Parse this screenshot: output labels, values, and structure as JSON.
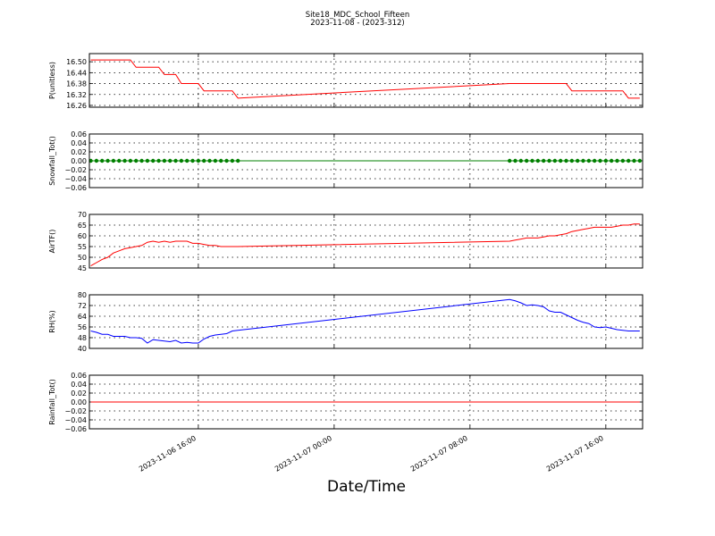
{
  "title": "Site18_MDC_School_Fifteen",
  "subtitle": "2023-11-08 - (2023-312)",
  "xlabel": "Date/Time",
  "chart_data": [
    {
      "type": "line",
      "ylabel": "P(unitless)",
      "color": "#ff0000",
      "xlim": [
        "2023-11-06 09:35",
        "2023-11-07 18:10"
      ],
      "xticks": [
        "2023-11-06 16:00",
        "2023-11-07 00:00",
        "2023-11-07 08:00",
        "2023-11-07 16:00"
      ],
      "ylim": [
        16.25,
        16.545
      ],
      "yticks": [
        16.26,
        16.32,
        16.38,
        16.44,
        {
          "value": 16.5,
          "label": "16.50"
        }
      ],
      "grid": true,
      "x": [
        "2023-11-06 09:40",
        "2023-11-06 10:00",
        "2023-11-06 10:20",
        "2023-11-06 10:40",
        "2023-11-06 11:00",
        "2023-11-06 11:20",
        "2023-11-06 11:40",
        "2023-11-06 12:00",
        "2023-11-06 12:20",
        "2023-11-06 12:40",
        "2023-11-06 13:00",
        "2023-11-06 13:20",
        "2023-11-06 13:40",
        "2023-11-06 14:00",
        "2023-11-06 14:20",
        "2023-11-06 14:40",
        "2023-11-06 15:00",
        "2023-11-06 15:20",
        "2023-11-06 15:40",
        "2023-11-06 16:00",
        "2023-11-06 16:20",
        "2023-11-06 16:40",
        "2023-11-06 17:00",
        "2023-11-06 17:20",
        "2023-11-06 17:40",
        "2023-11-06 18:00",
        "2023-11-06 18:20",
        "2023-11-07 10:20",
        "2023-11-07 10:40",
        "2023-11-07 11:00",
        "2023-11-07 11:20",
        "2023-11-07 11:40",
        "2023-11-07 12:00",
        "2023-11-07 12:20",
        "2023-11-07 12:40",
        "2023-11-07 13:00",
        "2023-11-07 13:20",
        "2023-11-07 13:40",
        "2023-11-07 14:00",
        "2023-11-07 14:20",
        "2023-11-07 14:40",
        "2023-11-07 15:00",
        "2023-11-07 15:20",
        "2023-11-07 15:40",
        "2023-11-07 16:00",
        "2023-11-07 16:20",
        "2023-11-07 16:40",
        "2023-11-07 17:00",
        "2023-11-07 17:20",
        "2023-11-07 17:40",
        "2023-11-07 18:00"
      ],
      "values": [
        16.51,
        16.51,
        16.51,
        16.51,
        16.51,
        16.51,
        16.51,
        16.51,
        16.47,
        16.47,
        16.47,
        16.47,
        16.47,
        16.43,
        16.43,
        16.43,
        16.38,
        16.38,
        16.38,
        16.38,
        16.34,
        16.34,
        16.34,
        16.34,
        16.34,
        16.34,
        16.3,
        16.38,
        16.38,
        16.38,
        16.38,
        16.38,
        16.38,
        16.38,
        16.38,
        16.38,
        16.38,
        16.38,
        16.34,
        16.34,
        16.34,
        16.34,
        16.34,
        16.34,
        16.34,
        16.34,
        16.34,
        16.34,
        16.3,
        16.3,
        16.3
      ]
    },
    {
      "type": "line",
      "ylabel": "Snowfall_Tot()",
      "color": "#008000",
      "marker": "o",
      "xlim": [
        "2023-11-06 09:35",
        "2023-11-07 18:10"
      ],
      "xticks": [
        "2023-11-06 16:00",
        "2023-11-07 00:00",
        "2023-11-07 08:00",
        "2023-11-07 16:00"
      ],
      "ylim": [
        -0.06,
        0.06
      ],
      "yticks": [
        {
          "value": -0.06,
          "label": "−0.06"
        },
        {
          "value": -0.04,
          "label": "−0.04"
        },
        {
          "value": -0.02,
          "label": "−0.02"
        },
        {
          "value": 0,
          "label": "0.00"
        },
        0.02,
        0.04,
        0.06
      ],
      "grid": true,
      "x": [
        "2023-11-06 09:40",
        "2023-11-06 10:00",
        "2023-11-06 10:20",
        "2023-11-06 10:40",
        "2023-11-06 11:00",
        "2023-11-06 11:20",
        "2023-11-06 11:40",
        "2023-11-06 12:00",
        "2023-11-06 12:20",
        "2023-11-06 12:40",
        "2023-11-06 13:00",
        "2023-11-06 13:20",
        "2023-11-06 13:40",
        "2023-11-06 14:00",
        "2023-11-06 14:20",
        "2023-11-06 14:40",
        "2023-11-06 15:00",
        "2023-11-06 15:20",
        "2023-11-06 15:40",
        "2023-11-06 16:00",
        "2023-11-06 16:20",
        "2023-11-06 16:40",
        "2023-11-06 17:00",
        "2023-11-06 17:20",
        "2023-11-06 17:40",
        "2023-11-06 18:00",
        "2023-11-06 18:20",
        "2023-11-07 10:20",
        "2023-11-07 10:40",
        "2023-11-07 11:00",
        "2023-11-07 11:20",
        "2023-11-07 11:40",
        "2023-11-07 12:00",
        "2023-11-07 12:20",
        "2023-11-07 12:40",
        "2023-11-07 13:00",
        "2023-11-07 13:20",
        "2023-11-07 13:40",
        "2023-11-07 14:00",
        "2023-11-07 14:20",
        "2023-11-07 14:40",
        "2023-11-07 15:00",
        "2023-11-07 15:20",
        "2023-11-07 15:40",
        "2023-11-07 16:00",
        "2023-11-07 16:20",
        "2023-11-07 16:40",
        "2023-11-07 17:00",
        "2023-11-07 17:20",
        "2023-11-07 17:40",
        "2023-11-07 18:00"
      ],
      "values": [
        0,
        0,
        0,
        0,
        0,
        0,
        0,
        0,
        0,
        0,
        0,
        0,
        0,
        0,
        0,
        0,
        0,
        0,
        0,
        0,
        0,
        0,
        0,
        0,
        0,
        0,
        0,
        0,
        0,
        0,
        0,
        0,
        0,
        0,
        0,
        0,
        0,
        0,
        0,
        0,
        0,
        0,
        0,
        0,
        0,
        0,
        0,
        0,
        0,
        0,
        0
      ]
    },
    {
      "type": "line",
      "ylabel": "AirTF()",
      "color": "#ff0000",
      "xlim": [
        "2023-11-06 09:35",
        "2023-11-07 18:10"
      ],
      "xticks": [
        "2023-11-06 16:00",
        "2023-11-07 00:00",
        "2023-11-07 08:00",
        "2023-11-07 16:00"
      ],
      "ylim": [
        45,
        70
      ],
      "yticks": [
        45,
        50,
        55,
        60,
        65,
        70
      ],
      "grid": true,
      "x": [
        "2023-11-06 09:40",
        "2023-11-06 10:00",
        "2023-11-06 10:20",
        "2023-11-06 10:40",
        "2023-11-06 11:00",
        "2023-11-06 11:20",
        "2023-11-06 11:40",
        "2023-11-06 12:00",
        "2023-11-06 12:20",
        "2023-11-06 12:40",
        "2023-11-06 13:00",
        "2023-11-06 13:20",
        "2023-11-06 13:40",
        "2023-11-06 14:00",
        "2023-11-06 14:20",
        "2023-11-06 14:40",
        "2023-11-06 15:00",
        "2023-11-06 15:20",
        "2023-11-06 15:40",
        "2023-11-06 16:00",
        "2023-11-06 16:20",
        "2023-11-06 16:40",
        "2023-11-06 17:00",
        "2023-11-06 17:20",
        "2023-11-06 17:40",
        "2023-11-06 18:00",
        "2023-11-06 18:20",
        "2023-11-07 10:20",
        "2023-11-07 10:40",
        "2023-11-07 11:00",
        "2023-11-07 11:20",
        "2023-11-07 11:40",
        "2023-11-07 12:00",
        "2023-11-07 12:20",
        "2023-11-07 12:40",
        "2023-11-07 13:00",
        "2023-11-07 13:20",
        "2023-11-07 13:40",
        "2023-11-07 14:00",
        "2023-11-07 14:20",
        "2023-11-07 14:40",
        "2023-11-07 15:00",
        "2023-11-07 15:20",
        "2023-11-07 15:40",
        "2023-11-07 16:00",
        "2023-11-07 16:20",
        "2023-11-07 16:40",
        "2023-11-07 17:00",
        "2023-11-07 17:20",
        "2023-11-07 17:40",
        "2023-11-07 18:00"
      ],
      "values": [
        46,
        47.5,
        49,
        50,
        52,
        53,
        54,
        54.5,
        55,
        55.5,
        57,
        57.5,
        57,
        57.5,
        57,
        57.5,
        57.5,
        57.5,
        56.5,
        56.5,
        56,
        55.5,
        55.5,
        55,
        55,
        55,
        55,
        57.5,
        58,
        58.5,
        59,
        59,
        59,
        59.5,
        60,
        60,
        60.5,
        61,
        62,
        62.5,
        63,
        63.5,
        64,
        64,
        64,
        64,
        64.5,
        65,
        65,
        65.5,
        65.5
      ]
    },
    {
      "type": "line",
      "ylabel": "RH(%)",
      "color": "#0000ff",
      "xlim": [
        "2023-11-06 09:35",
        "2023-11-07 18:10"
      ],
      "xticks": [
        "2023-11-06 16:00",
        "2023-11-07 00:00",
        "2023-11-07 08:00",
        "2023-11-07 16:00"
      ],
      "ylim": [
        40,
        80
      ],
      "yticks": [
        40,
        48,
        56,
        64,
        72,
        80
      ],
      "grid": true,
      "x": [
        "2023-11-06 09:40",
        "2023-11-06 10:00",
        "2023-11-06 10:20",
        "2023-11-06 10:40",
        "2023-11-06 11:00",
        "2023-11-06 11:20",
        "2023-11-06 11:40",
        "2023-11-06 12:00",
        "2023-11-06 12:20",
        "2023-11-06 12:40",
        "2023-11-06 13:00",
        "2023-11-06 13:20",
        "2023-11-06 13:40",
        "2023-11-06 14:00",
        "2023-11-06 14:20",
        "2023-11-06 14:40",
        "2023-11-06 15:00",
        "2023-11-06 15:20",
        "2023-11-06 15:40",
        "2023-11-06 16:00",
        "2023-11-06 16:20",
        "2023-11-06 16:40",
        "2023-11-06 17:00",
        "2023-11-06 17:20",
        "2023-11-06 17:40",
        "2023-11-06 18:00",
        "2023-11-06 18:20",
        "2023-11-07 10:20",
        "2023-11-07 10:40",
        "2023-11-07 11:00",
        "2023-11-07 11:20",
        "2023-11-07 11:40",
        "2023-11-07 12:00",
        "2023-11-07 12:20",
        "2023-11-07 12:40",
        "2023-11-07 13:00",
        "2023-11-07 13:20",
        "2023-11-07 13:40",
        "2023-11-07 14:00",
        "2023-11-07 14:20",
        "2023-11-07 14:40",
        "2023-11-07 15:00",
        "2023-11-07 15:20",
        "2023-11-07 15:40",
        "2023-11-07 16:00",
        "2023-11-07 16:20",
        "2023-11-07 16:40",
        "2023-11-07 17:00",
        "2023-11-07 17:20",
        "2023-11-07 17:40",
        "2023-11-07 18:00"
      ],
      "values": [
        53,
        52,
        50.5,
        50.5,
        49,
        49,
        49,
        48,
        48,
        47.5,
        44,
        46.5,
        46,
        45.5,
        45,
        46,
        44,
        44.5,
        44,
        44,
        47,
        49,
        50,
        50.5,
        51,
        53,
        53.5,
        76.5,
        75.5,
        74,
        72,
        72.5,
        72,
        71,
        68,
        67,
        67,
        65,
        63,
        61,
        59.5,
        58.5,
        56,
        55.5,
        56,
        55,
        54,
        53.5,
        53,
        53,
        53
      ]
    },
    {
      "type": "line",
      "ylabel": "Rainfall_Tot()",
      "color": "#ff0000",
      "xlim": [
        "2023-11-06 09:35",
        "2023-11-07 18:10"
      ],
      "xticks": [
        "2023-11-06 16:00",
        "2023-11-07 00:00",
        "2023-11-07 08:00",
        "2023-11-07 16:00"
      ],
      "ylim": [
        -0.06,
        0.06
      ],
      "yticks": [
        {
          "value": -0.06,
          "label": "−0.06"
        },
        {
          "value": -0.04,
          "label": "−0.04"
        },
        {
          "value": -0.02,
          "label": "−0.02"
        },
        {
          "value": 0,
          "label": "0.00"
        },
        0.02,
        0.04,
        0.06
      ],
      "grid": true,
      "x": [
        "2023-11-06 09:40",
        "2023-11-06 10:00",
        "2023-11-06 10:20",
        "2023-11-06 10:40",
        "2023-11-06 11:00",
        "2023-11-06 11:20",
        "2023-11-06 11:40",
        "2023-11-06 12:00",
        "2023-11-06 12:20",
        "2023-11-06 12:40",
        "2023-11-06 13:00",
        "2023-11-06 13:20",
        "2023-11-06 13:40",
        "2023-11-06 14:00",
        "2023-11-06 14:20",
        "2023-11-06 14:40",
        "2023-11-06 15:00",
        "2023-11-06 15:20",
        "2023-11-06 15:40",
        "2023-11-06 16:00",
        "2023-11-06 16:20",
        "2023-11-06 16:40",
        "2023-11-06 17:00",
        "2023-11-06 17:20",
        "2023-11-06 17:40",
        "2023-11-06 18:00",
        "2023-11-06 18:20",
        "2023-11-07 10:20",
        "2023-11-07 10:40",
        "2023-11-07 11:00",
        "2023-11-07 11:20",
        "2023-11-07 11:40",
        "2023-11-07 12:00",
        "2023-11-07 12:20",
        "2023-11-07 12:40",
        "2023-11-07 13:00",
        "2023-11-07 13:20",
        "2023-11-07 13:40",
        "2023-11-07 14:00",
        "2023-11-07 14:20",
        "2023-11-07 14:40",
        "2023-11-07 15:00",
        "2023-11-07 15:20",
        "2023-11-07 15:40",
        "2023-11-07 16:00",
        "2023-11-07 16:20",
        "2023-11-07 16:40",
        "2023-11-07 17:00",
        "2023-11-07 17:20",
        "2023-11-07 17:40",
        "2023-11-07 18:00"
      ],
      "values": [
        0,
        0,
        0,
        0,
        0,
        0,
        0,
        0,
        0,
        0,
        0,
        0,
        0,
        0,
        0,
        0,
        0,
        0,
        0,
        0,
        0,
        0,
        0,
        0,
        0,
        0,
        0,
        0,
        0,
        0,
        0,
        0,
        0,
        0,
        0,
        0,
        0,
        0,
        0,
        0,
        0,
        0,
        0,
        0,
        0,
        0,
        0,
        0,
        0,
        0,
        0
      ]
    }
  ]
}
